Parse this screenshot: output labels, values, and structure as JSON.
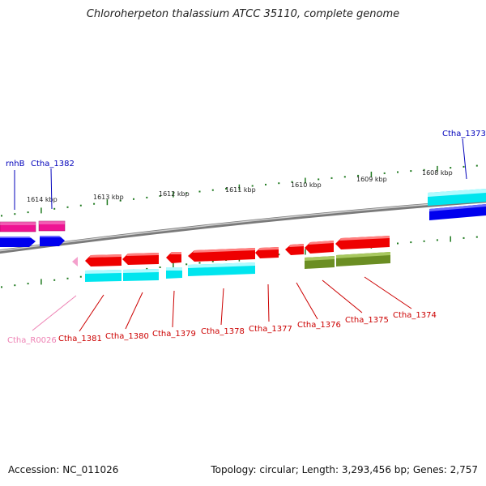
{
  "title": "Chloroherpeton thalassium ATCC 35110, complete genome",
  "footer": {
    "accession": "Accession: NC_011026",
    "summary": "Topology: circular; Length: 3,293,456 bp; Genes: 2,757"
  },
  "scale_labels": [
    "1614 kbp",
    "1613 kbp",
    "1612 kbp",
    "1611 kbp",
    "1610 kbp",
    "1609 kbp",
    "1608 kbp"
  ],
  "colors": {
    "cds_plus": "#0000ee",
    "cds_minus": "#ee0000",
    "gene_cyan": "#00e5ee",
    "gene_magenta": "#ee1493",
    "rna_pink": "#f4a0cc",
    "olive": "#6b8e23",
    "tick": "#1f7a1f",
    "label_blue": "#0000bb",
    "label_red": "#cc0000",
    "label_pink": "#ee82b4"
  },
  "gene_labels": {
    "rnhB": "rnhB",
    "ctha_1382": "Ctha_1382",
    "ctha_1373": "Ctha_1373",
    "ctha_r0026": "Ctha_R0026",
    "ctha_1381": "Ctha_1381",
    "ctha_1380": "Ctha_1380",
    "ctha_1379": "Ctha_1379",
    "ctha_1378": "Ctha_1378",
    "ctha_1377": "Ctha_1377",
    "ctha_1376": "Ctha_1376",
    "ctha_1375": "Ctha_1375",
    "ctha_1374": "Ctha_1374"
  }
}
